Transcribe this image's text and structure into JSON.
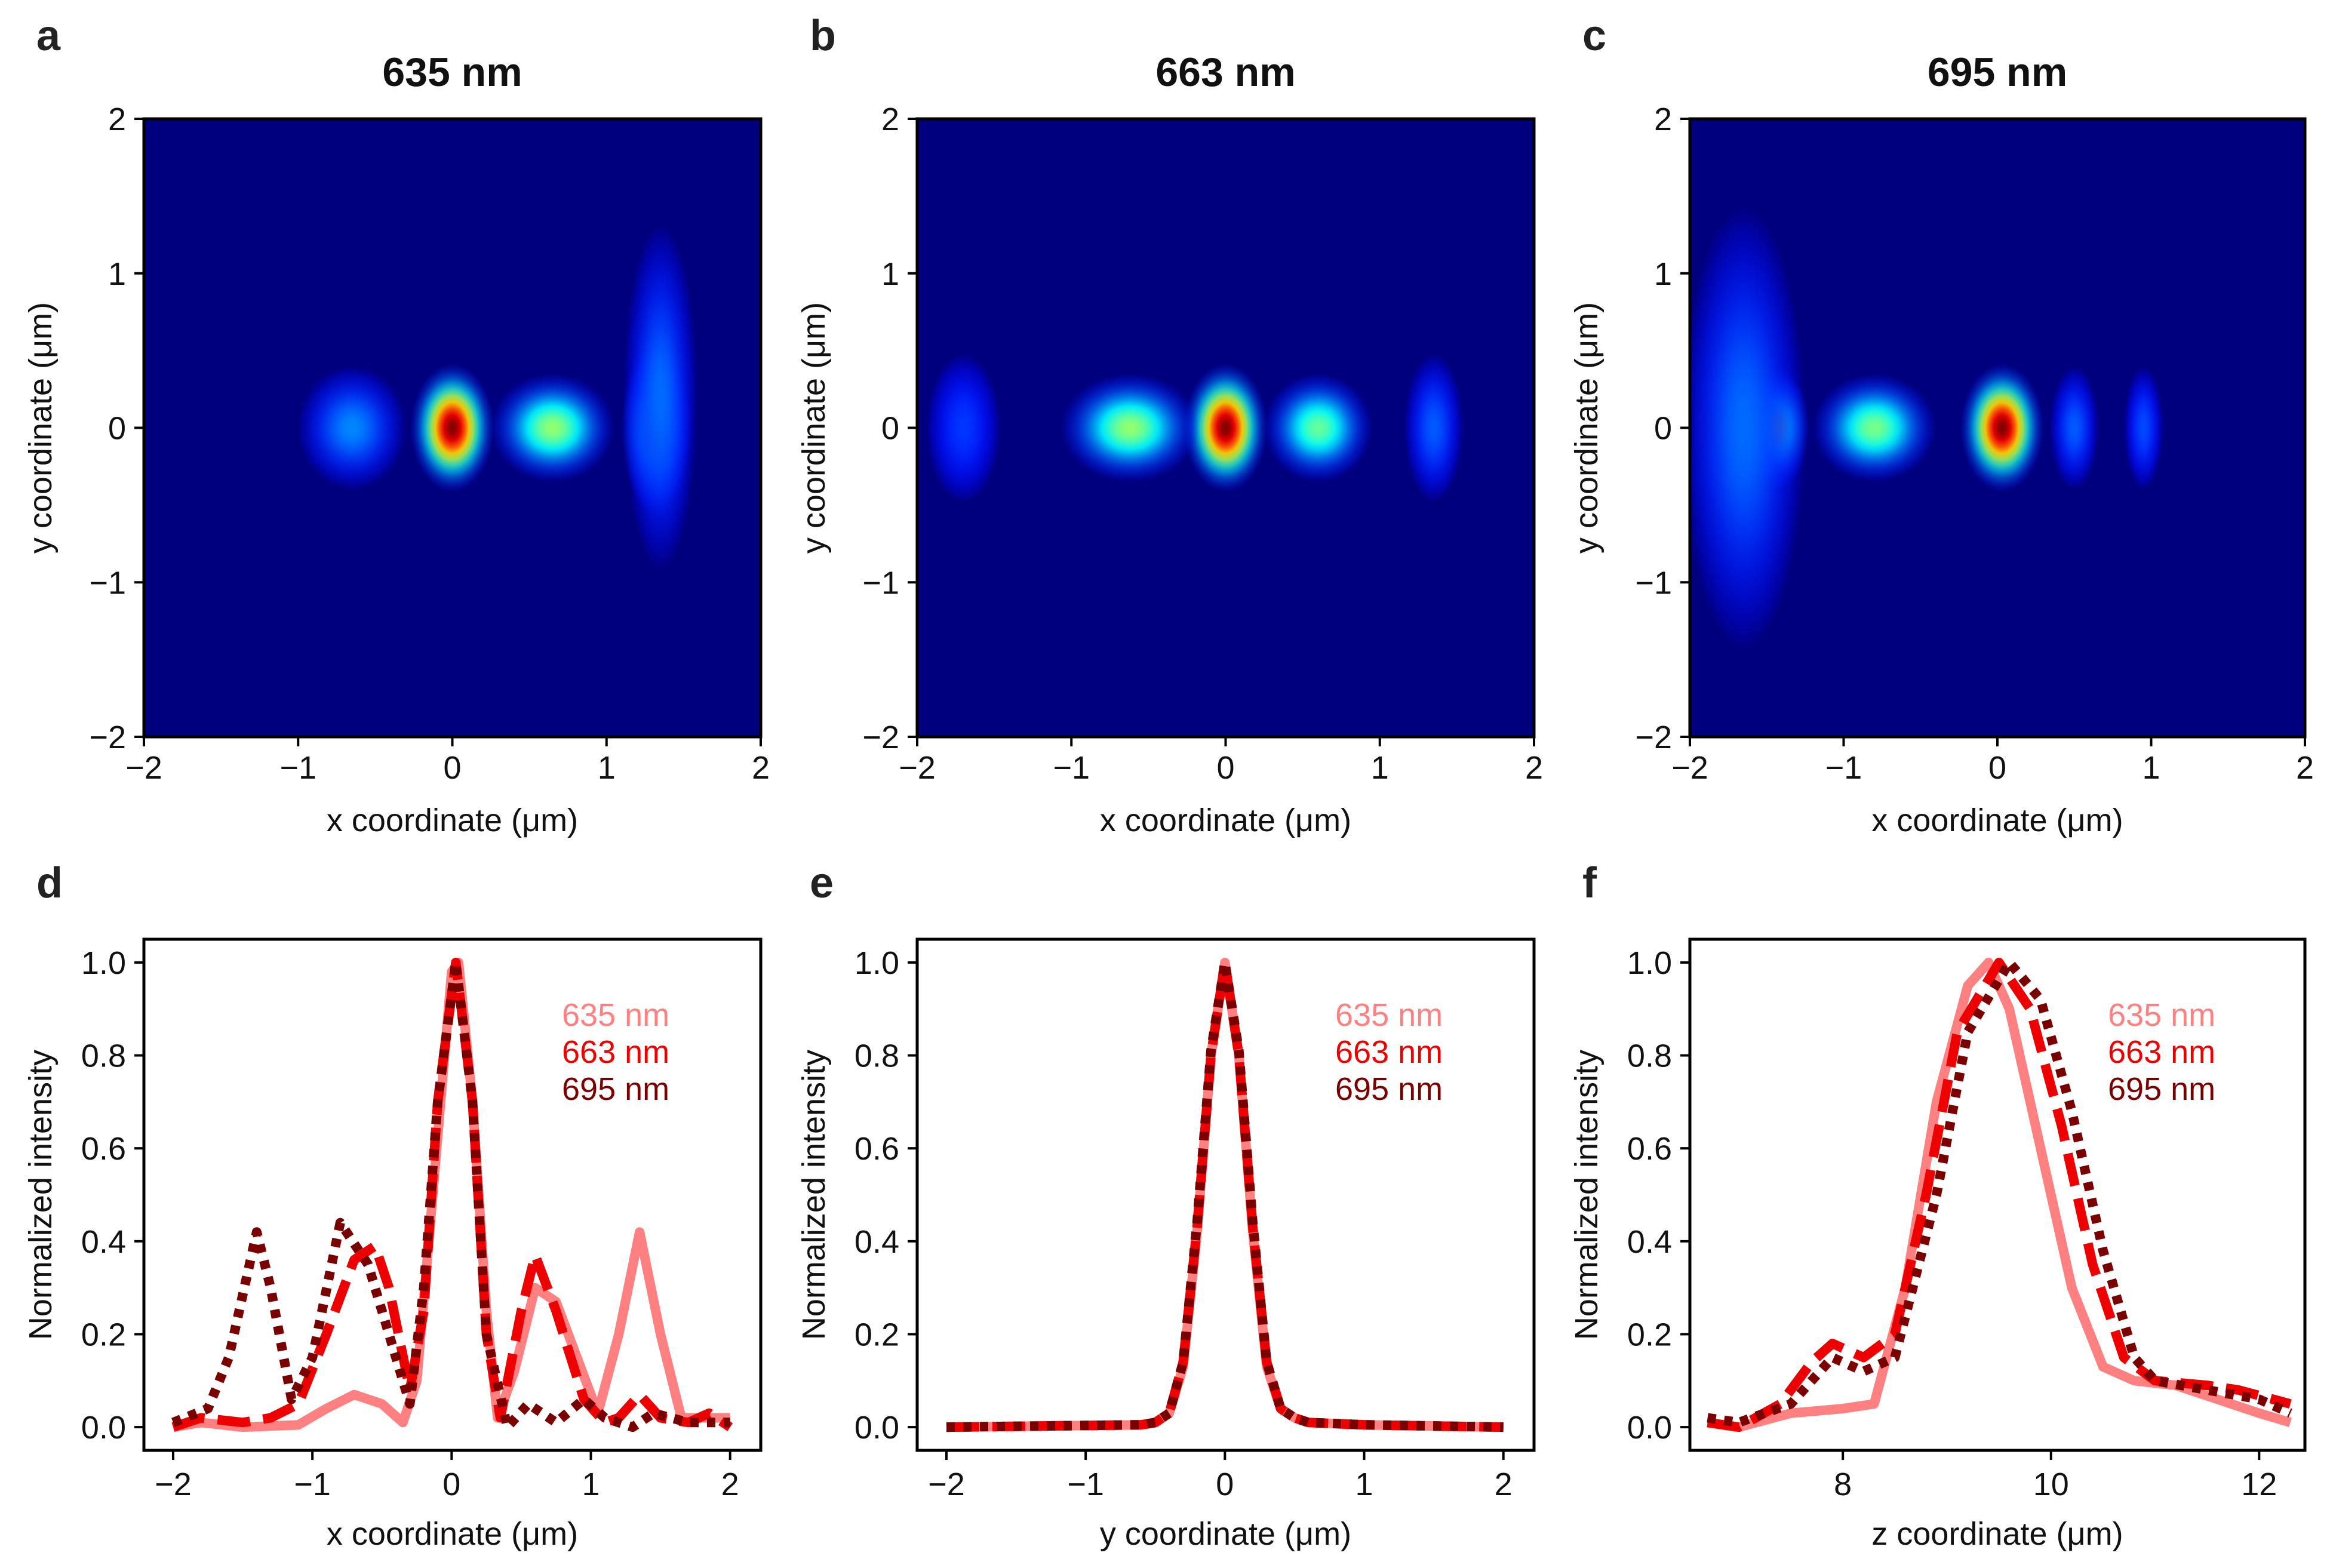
{
  "colors": {
    "s635": "#ff8080",
    "s663": "#ee0000",
    "s695": "#7a0000",
    "heat_bg": "#00007f"
  },
  "chart_data": [
    {
      "panel": "a",
      "type": "heatmap",
      "title": "635 nm",
      "xlabel": "x coordinate (μm)",
      "ylabel": "y coordinate (μm)",
      "xlim": [
        -2,
        2
      ],
      "ylim": [
        -2,
        2
      ],
      "xticks": [
        "−2",
        "−1",
        "0",
        "1",
        "2"
      ],
      "yticks": [
        "−2",
        "−1",
        "0",
        "1",
        "2"
      ],
      "spots": [
        {
          "x": 0,
          "y": 0,
          "sx": 0.17,
          "sy": 0.26,
          "v": 1.0
        },
        {
          "x": 0.65,
          "y": 0,
          "sx": 0.25,
          "sy": 0.22,
          "v": 0.45
        },
        {
          "x": 1.32,
          "y": 0,
          "sx": 0.14,
          "sy": 0.35,
          "v": 0.45
        },
        {
          "x": 1.35,
          "y": 0.2,
          "sx": 0.15,
          "sy": 0.7,
          "v": 0.12
        },
        {
          "x": -0.65,
          "y": 0,
          "sx": 0.22,
          "sy": 0.25,
          "v": 0.15
        }
      ]
    },
    {
      "panel": "b",
      "type": "heatmap",
      "title": "663 nm",
      "xlabel": "x coordinate (μm)",
      "ylabel": "y coordinate (μm)",
      "xlim": [
        -2,
        2
      ],
      "ylim": [
        -2,
        2
      ],
      "xticks": [
        "−2",
        "−1",
        "0",
        "1",
        "2"
      ],
      "yticks": [
        "−2",
        "−1",
        "0",
        "1",
        "2"
      ],
      "spots": [
        {
          "x": 0,
          "y": 0,
          "sx": 0.17,
          "sy": 0.26,
          "v": 1.0
        },
        {
          "x": -0.62,
          "y": 0,
          "sx": 0.28,
          "sy": 0.22,
          "v": 0.45
        },
        {
          "x": 0.6,
          "y": 0,
          "sx": 0.22,
          "sy": 0.22,
          "v": 0.4
        },
        {
          "x": 1.35,
          "y": 0,
          "sx": 0.12,
          "sy": 0.3,
          "v": 0.1
        },
        {
          "x": -1.7,
          "y": 0,
          "sx": 0.15,
          "sy": 0.3,
          "v": 0.06
        }
      ]
    },
    {
      "panel": "c",
      "type": "heatmap",
      "title": "695 nm",
      "xlabel": "x coordinate (μm)",
      "ylabel": "y coordinate (μm)",
      "xlim": [
        -2,
        2
      ],
      "ylim": [
        -2,
        2
      ],
      "xticks": [
        "−2",
        "−1",
        "0",
        "1",
        "2"
      ],
      "yticks": [
        "−2",
        "−1",
        "0",
        "1",
        "2"
      ],
      "spots": [
        {
          "x": 0.03,
          "y": 0,
          "sx": 0.17,
          "sy": 0.26,
          "v": 1.0
        },
        {
          "x": -0.8,
          "y": 0,
          "sx": 0.25,
          "sy": 0.22,
          "v": 0.42
        },
        {
          "x": -1.43,
          "y": 0,
          "sx": 0.13,
          "sy": 0.25,
          "v": 0.42
        },
        {
          "x": -1.65,
          "y": 0,
          "sx": 0.25,
          "sy": 0.9,
          "v": 0.12
        },
        {
          "x": 0.5,
          "y": 0,
          "sx": 0.1,
          "sy": 0.25,
          "v": 0.1
        },
        {
          "x": 0.95,
          "y": 0,
          "sx": 0.08,
          "sy": 0.25,
          "v": 0.08
        }
      ]
    },
    {
      "panel": "d",
      "type": "line",
      "xlabel": "x coordinate (μm)",
      "ylabel": "Normalized intensity",
      "xlim": [
        -2.21,
        2.22
      ],
      "ylim": [
        -0.05,
        1.05
      ],
      "xticks": [
        {
          "v": -2,
          "t": "−2"
        },
        {
          "v": -1,
          "t": "−1"
        },
        {
          "v": 0,
          "t": "0"
        },
        {
          "v": 1,
          "t": "1"
        },
        {
          "v": 2,
          "t": "2"
        }
      ],
      "yticks": [
        {
          "v": 0,
          "t": "0.0"
        },
        {
          "v": 0.2,
          "t": "0.2"
        },
        {
          "v": 0.4,
          "t": "0.4"
        },
        {
          "v": 0.6,
          "t": "0.6"
        },
        {
          "v": 0.8,
          "t": "0.8"
        },
        {
          "v": 1.0,
          "t": "1.0"
        }
      ],
      "legend": "top-right",
      "series": [
        {
          "name": "635 nm",
          "style": "solid",
          "color": "#ff8080",
          "points": [
            [
              -2,
              0
            ],
            [
              -1.8,
              0.01
            ],
            [
              -1.5,
              0
            ],
            [
              -1.1,
              0.005
            ],
            [
              -0.9,
              0.04
            ],
            [
              -0.7,
              0.07
            ],
            [
              -0.5,
              0.05
            ],
            [
              -0.35,
              0.01
            ],
            [
              -0.25,
              0.1
            ],
            [
              -0.15,
              0.45
            ],
            [
              0,
              0.98
            ],
            [
              0.05,
              1.0
            ],
            [
              0.15,
              0.7
            ],
            [
              0.25,
              0.25
            ],
            [
              0.33,
              0.02
            ],
            [
              0.45,
              0.12
            ],
            [
              0.6,
              0.3
            ],
            [
              0.75,
              0.27
            ],
            [
              0.9,
              0.15
            ],
            [
              1.05,
              0.03
            ],
            [
              1.2,
              0.2
            ],
            [
              1.35,
              0.42
            ],
            [
              1.5,
              0.2
            ],
            [
              1.65,
              0.02
            ],
            [
              1.8,
              0.02
            ],
            [
              2,
              0.02
            ]
          ]
        },
        {
          "name": "663 nm",
          "style": "dashed",
          "color": "#ee0000",
          "points": [
            [
              -2,
              0
            ],
            [
              -1.8,
              0.02
            ],
            [
              -1.5,
              0.01
            ],
            [
              -1.3,
              0.02
            ],
            [
              -1.1,
              0.05
            ],
            [
              -0.9,
              0.2
            ],
            [
              -0.7,
              0.36
            ],
            [
              -0.55,
              0.39
            ],
            [
              -0.45,
              0.3
            ],
            [
              -0.3,
              0.08
            ],
            [
              -0.2,
              0.25
            ],
            [
              -0.1,
              0.7
            ],
            [
              0.03,
              1.0
            ],
            [
              0.15,
              0.7
            ],
            [
              0.25,
              0.2
            ],
            [
              0.35,
              0.02
            ],
            [
              0.5,
              0.25
            ],
            [
              0.6,
              0.37
            ],
            [
              0.75,
              0.25
            ],
            [
              0.95,
              0.06
            ],
            [
              1.1,
              0.01
            ],
            [
              1.2,
              0.02
            ],
            [
              1.35,
              0.07
            ],
            [
              1.5,
              0.02
            ],
            [
              1.7,
              0.01
            ],
            [
              1.85,
              0.03
            ],
            [
              2,
              0
            ]
          ]
        },
        {
          "name": "695 nm",
          "style": "dotted",
          "color": "#7a0000",
          "points": [
            [
              -2,
              0.01
            ],
            [
              -1.75,
              0.04
            ],
            [
              -1.6,
              0.15
            ],
            [
              -1.4,
              0.42
            ],
            [
              -1.3,
              0.3
            ],
            [
              -1.15,
              0.06
            ],
            [
              -1.0,
              0.15
            ],
            [
              -0.8,
              0.44
            ],
            [
              -0.6,
              0.35
            ],
            [
              -0.45,
              0.2
            ],
            [
              -0.3,
              0.05
            ],
            [
              -0.2,
              0.3
            ],
            [
              -0.1,
              0.7
            ],
            [
              0.03,
              1.0
            ],
            [
              0.15,
              0.7
            ],
            [
              0.25,
              0.2
            ],
            [
              0.4,
              0
            ],
            [
              0.55,
              0.05
            ],
            [
              0.75,
              0.01
            ],
            [
              0.95,
              0.06
            ],
            [
              1.1,
              0.02
            ],
            [
              1.3,
              0
            ],
            [
              1.45,
              0.03
            ],
            [
              1.7,
              0.01
            ],
            [
              2,
              0.01
            ]
          ]
        }
      ]
    },
    {
      "panel": "e",
      "type": "line",
      "xlabel": "y coordinate (μm)",
      "ylabel": "Normalized intensity",
      "xlim": [
        -2.21,
        2.22
      ],
      "ylim": [
        -0.05,
        1.05
      ],
      "xticks": [
        {
          "v": -2,
          "t": "−2"
        },
        {
          "v": -1,
          "t": "−1"
        },
        {
          "v": 0,
          "t": "0"
        },
        {
          "v": 1,
          "t": "1"
        },
        {
          "v": 2,
          "t": "2"
        }
      ],
      "yticks": [
        {
          "v": 0,
          "t": "0.0"
        },
        {
          "v": 0.2,
          "t": "0.2"
        },
        {
          "v": 0.4,
          "t": "0.4"
        },
        {
          "v": 0.6,
          "t": "0.6"
        },
        {
          "v": 0.8,
          "t": "0.8"
        },
        {
          "v": 1.0,
          "t": "1.0"
        }
      ],
      "legend": "top-right",
      "series": [
        {
          "name": "635 nm",
          "style": "solid",
          "color": "#ff8080",
          "points": [
            [
              -2,
              0
            ],
            [
              -0.6,
              0.005
            ],
            [
              -0.5,
              0.01
            ],
            [
              -0.4,
              0.03
            ],
            [
              -0.3,
              0.13
            ],
            [
              -0.2,
              0.42
            ],
            [
              -0.1,
              0.8
            ],
            [
              0,
              1.0
            ],
            [
              0.1,
              0.8
            ],
            [
              0.2,
              0.42
            ],
            [
              0.3,
              0.13
            ],
            [
              0.4,
              0.04
            ],
            [
              0.5,
              0.02
            ],
            [
              0.6,
              0.01
            ],
            [
              1,
              0.005
            ],
            [
              2,
              0
            ]
          ]
        },
        {
          "name": "663 nm",
          "style": "dashed",
          "color": "#ee0000",
          "points": [
            [
              -2,
              0
            ],
            [
              -0.6,
              0.005
            ],
            [
              -0.5,
              0.01
            ],
            [
              -0.4,
              0.03
            ],
            [
              -0.3,
              0.14
            ],
            [
              -0.2,
              0.43
            ],
            [
              -0.1,
              0.8
            ],
            [
              0,
              1.0
            ],
            [
              0.1,
              0.8
            ],
            [
              0.2,
              0.43
            ],
            [
              0.3,
              0.14
            ],
            [
              0.4,
              0.04
            ],
            [
              0.5,
              0.02
            ],
            [
              0.6,
              0.01
            ],
            [
              1,
              0.005
            ],
            [
              2,
              0
            ]
          ]
        },
        {
          "name": "695 nm",
          "style": "dotted",
          "color": "#7a0000",
          "points": [
            [
              -2,
              0
            ],
            [
              -0.6,
              0.005
            ],
            [
              -0.5,
              0.01
            ],
            [
              -0.4,
              0.03
            ],
            [
              -0.3,
              0.14
            ],
            [
              -0.2,
              0.44
            ],
            [
              -0.1,
              0.81
            ],
            [
              0,
              1.0
            ],
            [
              0.1,
              0.81
            ],
            [
              0.2,
              0.44
            ],
            [
              0.3,
              0.14
            ],
            [
              0.4,
              0.04
            ],
            [
              0.5,
              0.02
            ],
            [
              0.6,
              0.01
            ],
            [
              1,
              0.005
            ],
            [
              2,
              0
            ]
          ]
        }
      ]
    },
    {
      "panel": "f",
      "type": "line",
      "xlabel": "z coordinate (μm)",
      "ylabel": "Normalized intensity",
      "xlim": [
        6.53,
        12.44
      ],
      "ylim": [
        -0.05,
        1.05
      ],
      "xticks": [
        {
          "v": 8,
          "t": "8"
        },
        {
          "v": 10,
          "t": "10"
        },
        {
          "v": 12,
          "t": "12"
        }
      ],
      "yticks": [
        {
          "v": 0,
          "t": "0.0"
        },
        {
          "v": 0.2,
          "t": "0.2"
        },
        {
          "v": 0.4,
          "t": "0.4"
        },
        {
          "v": 0.6,
          "t": "0.6"
        },
        {
          "v": 0.8,
          "t": "0.8"
        },
        {
          "v": 1.0,
          "t": "1.0"
        }
      ],
      "legend": "top-right",
      "series": [
        {
          "name": "635 nm",
          "style": "solid",
          "color": "#ff8080",
          "points": [
            [
              6.7,
              0.01
            ],
            [
              7,
              0
            ],
            [
              7.5,
              0.03
            ],
            [
              8,
              0.04
            ],
            [
              8.3,
              0.05
            ],
            [
              8.6,
              0.3
            ],
            [
              8.9,
              0.7
            ],
            [
              9.2,
              0.95
            ],
            [
              9.4,
              1.0
            ],
            [
              9.6,
              0.9
            ],
            [
              9.9,
              0.6
            ],
            [
              10.2,
              0.3
            ],
            [
              10.5,
              0.13
            ],
            [
              10.8,
              0.1
            ],
            [
              11.2,
              0.09
            ],
            [
              11.6,
              0.06
            ],
            [
              12,
              0.03
            ],
            [
              12.3,
              0.01
            ]
          ]
        },
        {
          "name": "663 nm",
          "style": "dashed",
          "color": "#ee0000",
          "points": [
            [
              6.7,
              0.01
            ],
            [
              7,
              0
            ],
            [
              7.4,
              0.05
            ],
            [
              7.7,
              0.14
            ],
            [
              7.9,
              0.18
            ],
            [
              8.2,
              0.15
            ],
            [
              8.5,
              0.2
            ],
            [
              8.8,
              0.5
            ],
            [
              9.1,
              0.85
            ],
            [
              9.5,
              1.0
            ],
            [
              9.8,
              0.9
            ],
            [
              10.1,
              0.65
            ],
            [
              10.4,
              0.35
            ],
            [
              10.7,
              0.15
            ],
            [
              11,
              0.1
            ],
            [
              11.5,
              0.09
            ],
            [
              11.8,
              0.08
            ],
            [
              12.3,
              0.05
            ]
          ]
        },
        {
          "name": "695 nm",
          "style": "dotted",
          "color": "#7a0000",
          "points": [
            [
              6.7,
              0.02
            ],
            [
              7,
              0.01
            ],
            [
              7.5,
              0.05
            ],
            [
              7.9,
              0.15
            ],
            [
              8.2,
              0.12
            ],
            [
              8.5,
              0.15
            ],
            [
              8.9,
              0.5
            ],
            [
              9.2,
              0.85
            ],
            [
              9.6,
              1.0
            ],
            [
              9.9,
              0.92
            ],
            [
              10.2,
              0.68
            ],
            [
              10.5,
              0.38
            ],
            [
              10.8,
              0.15
            ],
            [
              11,
              0.1
            ],
            [
              11.5,
              0.08
            ],
            [
              12,
              0.06
            ],
            [
              12.3,
              0.03
            ]
          ]
        }
      ]
    }
  ]
}
